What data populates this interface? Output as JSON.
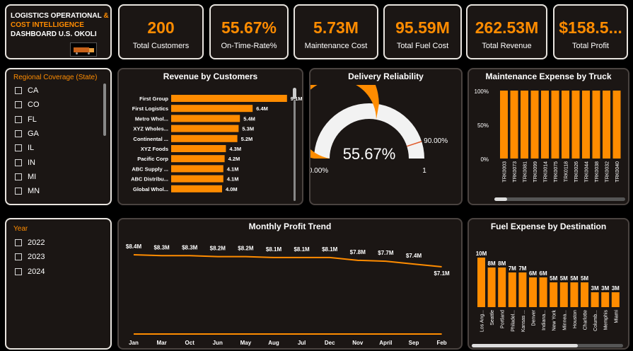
{
  "header": {
    "title_line1": "LOGISTICS OPERATIONAL",
    "title_amp": "&",
    "title_line2": "COST INTELLIGENCE",
    "title_line3": "DASHBOARD U.S. OKOLI",
    "colors": {
      "accent": "#ff8c00",
      "bg": "#1b1614",
      "page": "#000000"
    }
  },
  "kpis": [
    {
      "value": "200",
      "label": "Total Customers"
    },
    {
      "value": "55.67%",
      "label": "On-Time-Rate%"
    },
    {
      "value": "5.73M",
      "label": "Maintenance Cost"
    },
    {
      "value": "95.59M",
      "label": "Total Fuel Cost"
    },
    {
      "value": "262.53M",
      "label": "Total Revenue"
    },
    {
      "value": "$158.5...",
      "label": "Total Profit"
    }
  ],
  "region_slicer": {
    "title": "Regional Coverage (State)",
    "items": [
      "CA",
      "CO",
      "FL",
      "GA",
      "IL",
      "IN",
      "MI",
      "MN"
    ]
  },
  "year_slicer": {
    "title": "Year",
    "items": [
      "2022",
      "2023",
      "2024"
    ]
  },
  "revenue_by_customers": {
    "title": "Revenue by Customers",
    "chart_data": {
      "type": "bar",
      "orientation": "horizontal",
      "categories": [
        "First Group",
        "First Logistics",
        "Metro Whol...",
        "XYZ Wholes...",
        "Continental ...",
        "XYZ Foods",
        "Pacific Corp",
        "ABC Supply ...",
        "ABC Distribu...",
        "Global Whol..."
      ],
      "values": [
        9.1,
        6.4,
        5.4,
        5.3,
        5.2,
        4.3,
        4.2,
        4.1,
        4.1,
        4.0
      ],
      "labels": [
        "9.1M",
        "6.4M",
        "5.4M",
        "5.3M",
        "5.2M",
        "4.3M",
        "4.2M",
        "4.1M",
        "4.1M",
        "4.0M"
      ],
      "xlim": [
        0,
        10
      ]
    }
  },
  "delivery_reliability": {
    "title": "Delivery Reliability",
    "chart_data": {
      "type": "gauge",
      "value": 0.5567,
      "value_label": "55.67%",
      "min_label": "0.00%",
      "max_label": "1",
      "target": 0.9,
      "target_label": "90.00%"
    }
  },
  "maintenance_by_truck": {
    "title": "Maintenance Expense by Truck",
    "chart_data": {
      "type": "bar",
      "categories": [
        "TRK0003",
        "TRK0073",
        "TRK0081",
        "TRK0099",
        "TRK0014",
        "TRK0075",
        "TRK0118",
        "TRK0026",
        "TRK0044",
        "TRK0038",
        "TRK0032",
        "TRK0040"
      ],
      "values": [
        100,
        100,
        100,
        100,
        100,
        100,
        100,
        100,
        100,
        100,
        100,
        100
      ],
      "yticks": [
        "100%",
        "50%",
        "0%"
      ],
      "ylim": [
        0,
        100
      ]
    }
  },
  "monthly_profit": {
    "title": "Monthly Profit Trend",
    "chart_data": {
      "type": "line",
      "categories": [
        "Jan",
        "Mar",
        "Oct",
        "Jun",
        "May",
        "Aug",
        "Jul",
        "Dec",
        "Nov",
        "April",
        "Sep",
        "Feb"
      ],
      "series": [
        {
          "values": [
            8.4,
            8.3,
            8.3,
            8.2,
            8.2,
            8.1,
            8.1,
            8.1,
            7.8,
            7.7,
            7.4,
            7.1
          ],
          "labels": [
            "$8.4M",
            "$8.3M",
            "$8.3M",
            "$8.2M",
            "$8.2M",
            "$8.1M",
            "$8.1M",
            "$8.1M",
            "$7.8M",
            "$7.7M",
            "$7.4M",
            "$7.1M"
          ]
        },
        {
          "values": [
            0,
            0,
            0,
            0,
            0,
            0,
            0,
            0,
            0,
            0,
            0,
            0
          ]
        }
      ]
    }
  },
  "fuel_by_destination": {
    "title": "Fuel Expense by Destination",
    "chart_data": {
      "type": "bar",
      "categories": [
        "Los Ang...",
        "Seattle",
        "Portland",
        "Philadel...",
        "Kansas ...",
        "Denver",
        "Indiana...",
        "New York",
        "Minnea...",
        "Houston",
        "Charlotte",
        "Columb...",
        "Memphis",
        "Miami"
      ],
      "values": [
        10,
        8,
        8,
        7,
        7,
        6,
        6,
        5,
        5,
        5,
        5,
        3,
        3,
        3
      ],
      "labels": [
        "10M",
        "8M",
        "8M",
        "7M",
        "7M",
        "6M",
        "6M",
        "5M",
        "5M",
        "5M",
        "5M",
        "3M",
        "3M",
        "3M"
      ]
    }
  }
}
